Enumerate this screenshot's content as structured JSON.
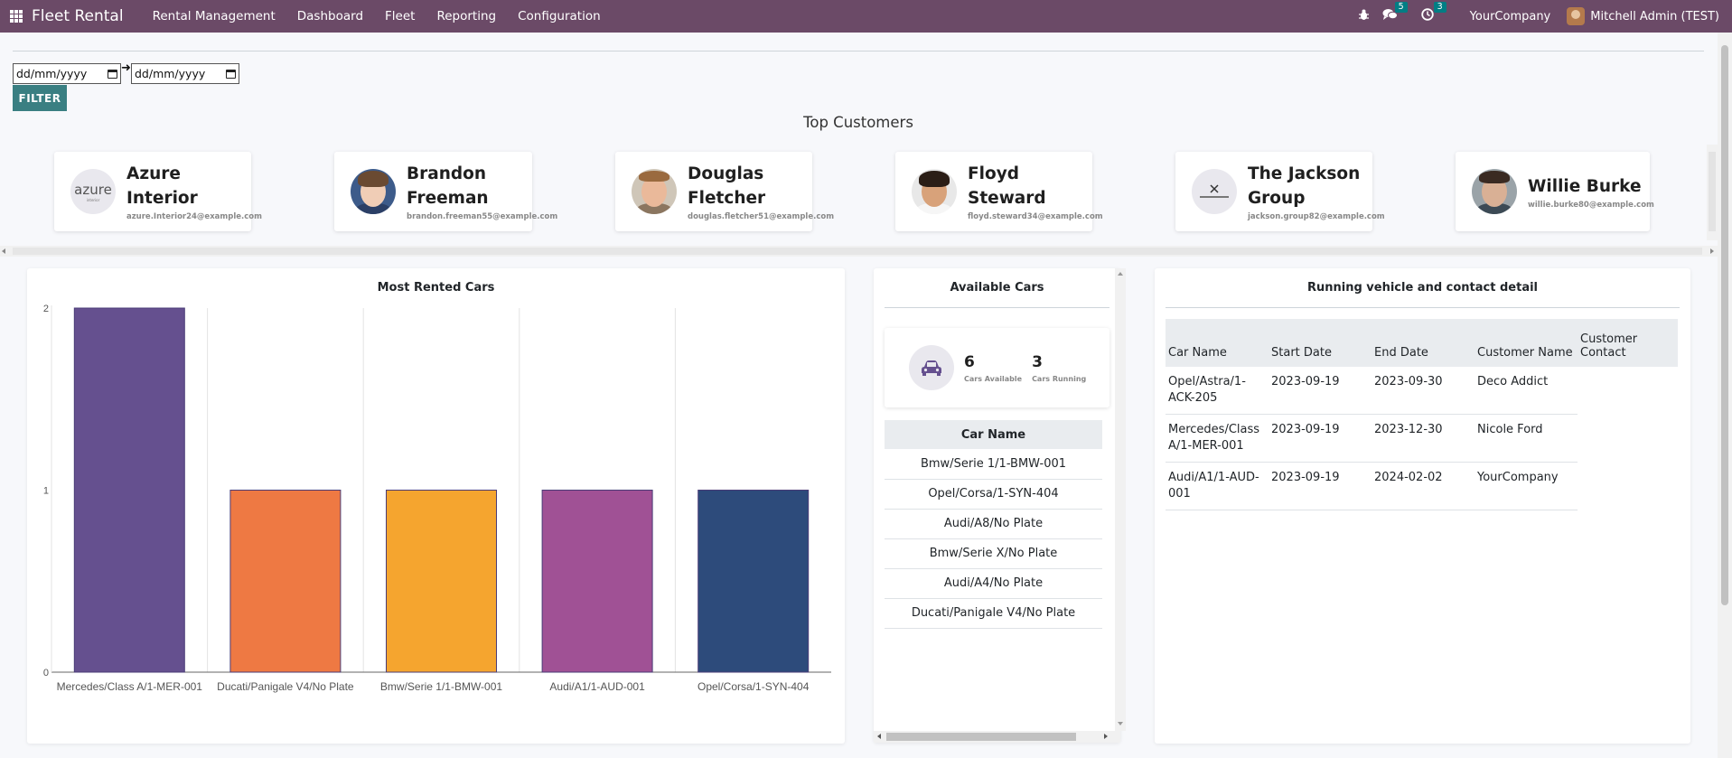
{
  "navbar": {
    "brand": "Fleet Rental",
    "menu": [
      "Rental Management",
      "Dashboard",
      "Fleet",
      "Reporting",
      "Configuration"
    ],
    "messages_count": "5",
    "activities_count": "3",
    "company": "YourCompany",
    "user": "Mitchell Admin (TEST)"
  },
  "filters": {
    "start_placeholder": "dd/mm/yyyy",
    "end_placeholder": "dd/mm/yyyy",
    "filter_label": "FILTER"
  },
  "top_customers": {
    "title": "Top Customers",
    "items": [
      {
        "name": "Azure Interior",
        "line1": "Azure",
        "line2": "Interior",
        "email": "azure.Interior24@example.com"
      },
      {
        "name": "Brandon Freeman",
        "line1": "Brandon",
        "line2": "Freeman",
        "email": "brandon.freeman55@example.com"
      },
      {
        "name": "Douglas Fletcher",
        "line1": "Douglas",
        "line2": "Fletcher",
        "email": "douglas.fletcher51@example.com"
      },
      {
        "name": "Floyd Steward",
        "line1": "Floyd",
        "line2": "Steward",
        "email": "floyd.steward34@example.com"
      },
      {
        "name": "The Jackson Group",
        "line1": "The Jackson",
        "line2": "Group",
        "email": "jackson.group82@example.com"
      },
      {
        "name": "Willie Burke",
        "line1": "Willie Burke",
        "line2": "",
        "email": "willie.burke80@example.com"
      }
    ]
  },
  "most_rented": {
    "title": "Most Rented Cars"
  },
  "chart_data": {
    "type": "bar",
    "title": "Most Rented Cars",
    "categories": [
      "Mercedes/Class A/1-MER-001",
      "Ducati/Panigale V4/No Plate",
      "Bmw/Serie 1/1-BMW-001",
      "Audi/A1/1-AUD-001",
      "Opel/Corsa/1-SYN-404"
    ],
    "values": [
      2,
      1,
      1,
      1,
      1
    ],
    "colors": [
      "#65508f",
      "#ee7943",
      "#f5a52f",
      "#a05195",
      "#2d4b7b"
    ],
    "ylim": [
      0,
      2
    ],
    "yticks": [
      "0",
      "1",
      "2"
    ],
    "grid": true
  },
  "available": {
    "title": "Available Cars",
    "available_count": "6",
    "available_label": "Cars Available",
    "running_count": "3",
    "running_label": "Cars Running",
    "table_header": "Car Name",
    "cars": [
      "Bmw/Serie 1/1-BMW-001",
      "Opel/Corsa/1-SYN-404",
      "Audi/A8/No Plate",
      "Bmw/Serie X/No Plate",
      "Audi/A4/No Plate",
      "Ducati/Panigale V4/No Plate"
    ]
  },
  "running": {
    "title": "Running vehicle and contact detail",
    "headers": [
      "Car Name",
      "Start Date",
      "End Date",
      "Customer Name",
      "Customer Contact"
    ],
    "rows": [
      [
        "Opel/Astra/1-ACK-205",
        "2023-09-19",
        "2023-09-30",
        "Deco Addict",
        ""
      ],
      [
        "Mercedes/Class A/1-MER-001",
        "2023-09-19",
        "2023-12-30",
        "Nicole Ford",
        ""
      ],
      [
        "Audi/A1/1-AUD-001",
        "2023-09-19",
        "2024-02-02",
        "YourCompany",
        ""
      ]
    ]
  }
}
